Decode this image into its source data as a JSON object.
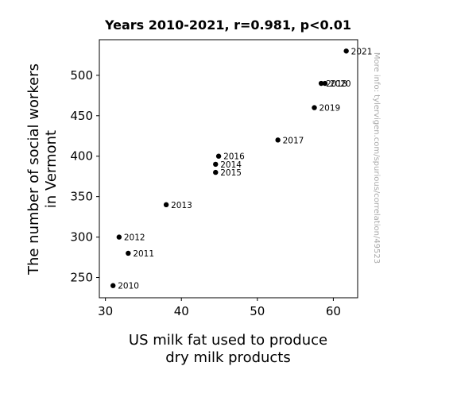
{
  "chart_data": {
    "type": "scatter",
    "title": "Years 2010-2021, r=0.981, p<0.01",
    "xlabel": [
      "US milk fat used to produce",
      "dry milk products"
    ],
    "ylabel": [
      "The number of social workers",
      "in Vermont"
    ],
    "xlim": [
      29.2,
      63.2
    ],
    "ylim": [
      225,
      544
    ],
    "xticks": [
      30,
      40,
      50,
      60
    ],
    "yticks": [
      250,
      300,
      350,
      400,
      450,
      500
    ],
    "grid": false,
    "marker_color": "#000000",
    "points": [
      {
        "label": "2010",
        "x": 31.0,
        "y": 240
      },
      {
        "label": "2011",
        "x": 33.0,
        "y": 280
      },
      {
        "label": "2012",
        "x": 31.8,
        "y": 300
      },
      {
        "label": "2013",
        "x": 38.0,
        "y": 340
      },
      {
        "label": "2014",
        "x": 44.5,
        "y": 390
      },
      {
        "label": "2015",
        "x": 44.5,
        "y": 380
      },
      {
        "label": "2016",
        "x": 44.9,
        "y": 400
      },
      {
        "label": "2017",
        "x": 52.7,
        "y": 420
      },
      {
        "label": "2018",
        "x": 58.4,
        "y": 490
      },
      {
        "label": "2019",
        "x": 57.5,
        "y": 460
      },
      {
        "label": "2020",
        "x": 58.9,
        "y": 490
      },
      {
        "label": "2021",
        "x": 61.7,
        "y": 530
      }
    ]
  },
  "side_note": "More info: tylervigen.com/spurious/correlation/49523"
}
